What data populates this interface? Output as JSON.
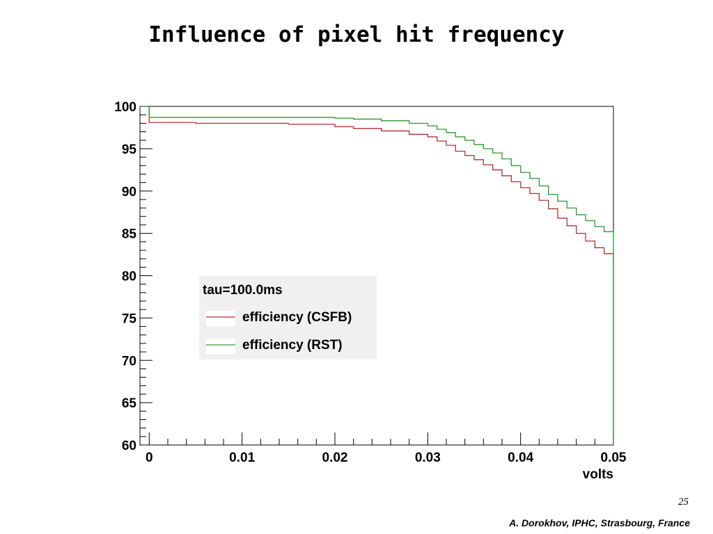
{
  "slide": {
    "title": "Influence of pixel hit frequency",
    "page_number": "25",
    "footer": "A. Dorokhov,  IPHC, Strasbourg, France"
  },
  "chart_data": {
    "type": "line",
    "title": "",
    "xlabel": "volts",
    "ylabel": "",
    "xlim": [
      -0.001,
      0.05
    ],
    "ylim": [
      60,
      100
    ],
    "x_ticks": [
      "0",
      "0.01",
      "0.02",
      "0.03",
      "0.04",
      "0.05"
    ],
    "y_ticks": [
      "60",
      "65",
      "70",
      "75",
      "80",
      "85",
      "90",
      "95",
      "100"
    ],
    "legend": {
      "header": "tau=100.0ms",
      "position": "center-left"
    },
    "series": [
      {
        "name": "efficiency (CSFB)",
        "color": "#b03030",
        "x": [
          -0.001,
          0.0,
          0.005,
          0.01,
          0.015,
          0.02,
          0.022,
          0.025,
          0.028,
          0.03,
          0.031,
          0.032,
          0.033,
          0.034,
          0.035,
          0.036,
          0.037,
          0.038,
          0.039,
          0.04,
          0.041,
          0.042,
          0.043,
          0.044,
          0.045,
          0.046,
          0.047,
          0.048,
          0.049,
          0.05,
          0.05
        ],
        "y": [
          100,
          98.1,
          98.0,
          98.0,
          97.9,
          97.6,
          97.4,
          97.1,
          96.7,
          96.4,
          95.9,
          95.4,
          94.7,
          94.2,
          93.7,
          93.1,
          92.5,
          91.8,
          91.1,
          90.4,
          89.7,
          88.9,
          87.9,
          86.8,
          85.9,
          85.0,
          84.1,
          83.3,
          82.6,
          81.9,
          60
        ]
      },
      {
        "name": "efficiency (RST)",
        "color": "#2a9a2a",
        "x": [
          -0.001,
          0.0,
          0.005,
          0.01,
          0.015,
          0.02,
          0.022,
          0.025,
          0.028,
          0.03,
          0.031,
          0.032,
          0.033,
          0.034,
          0.035,
          0.036,
          0.037,
          0.038,
          0.039,
          0.04,
          0.041,
          0.042,
          0.043,
          0.044,
          0.045,
          0.046,
          0.047,
          0.048,
          0.049,
          0.05,
          0.05
        ],
        "y": [
          100,
          98.7,
          98.7,
          98.7,
          98.7,
          98.6,
          98.5,
          98.3,
          98.0,
          97.7,
          97.3,
          96.9,
          96.4,
          96.0,
          95.5,
          95.0,
          94.5,
          93.8,
          93.0,
          92.2,
          91.5,
          90.6,
          89.6,
          88.8,
          88.0,
          87.2,
          86.5,
          85.8,
          85.2,
          84.5,
          60
        ]
      }
    ]
  }
}
